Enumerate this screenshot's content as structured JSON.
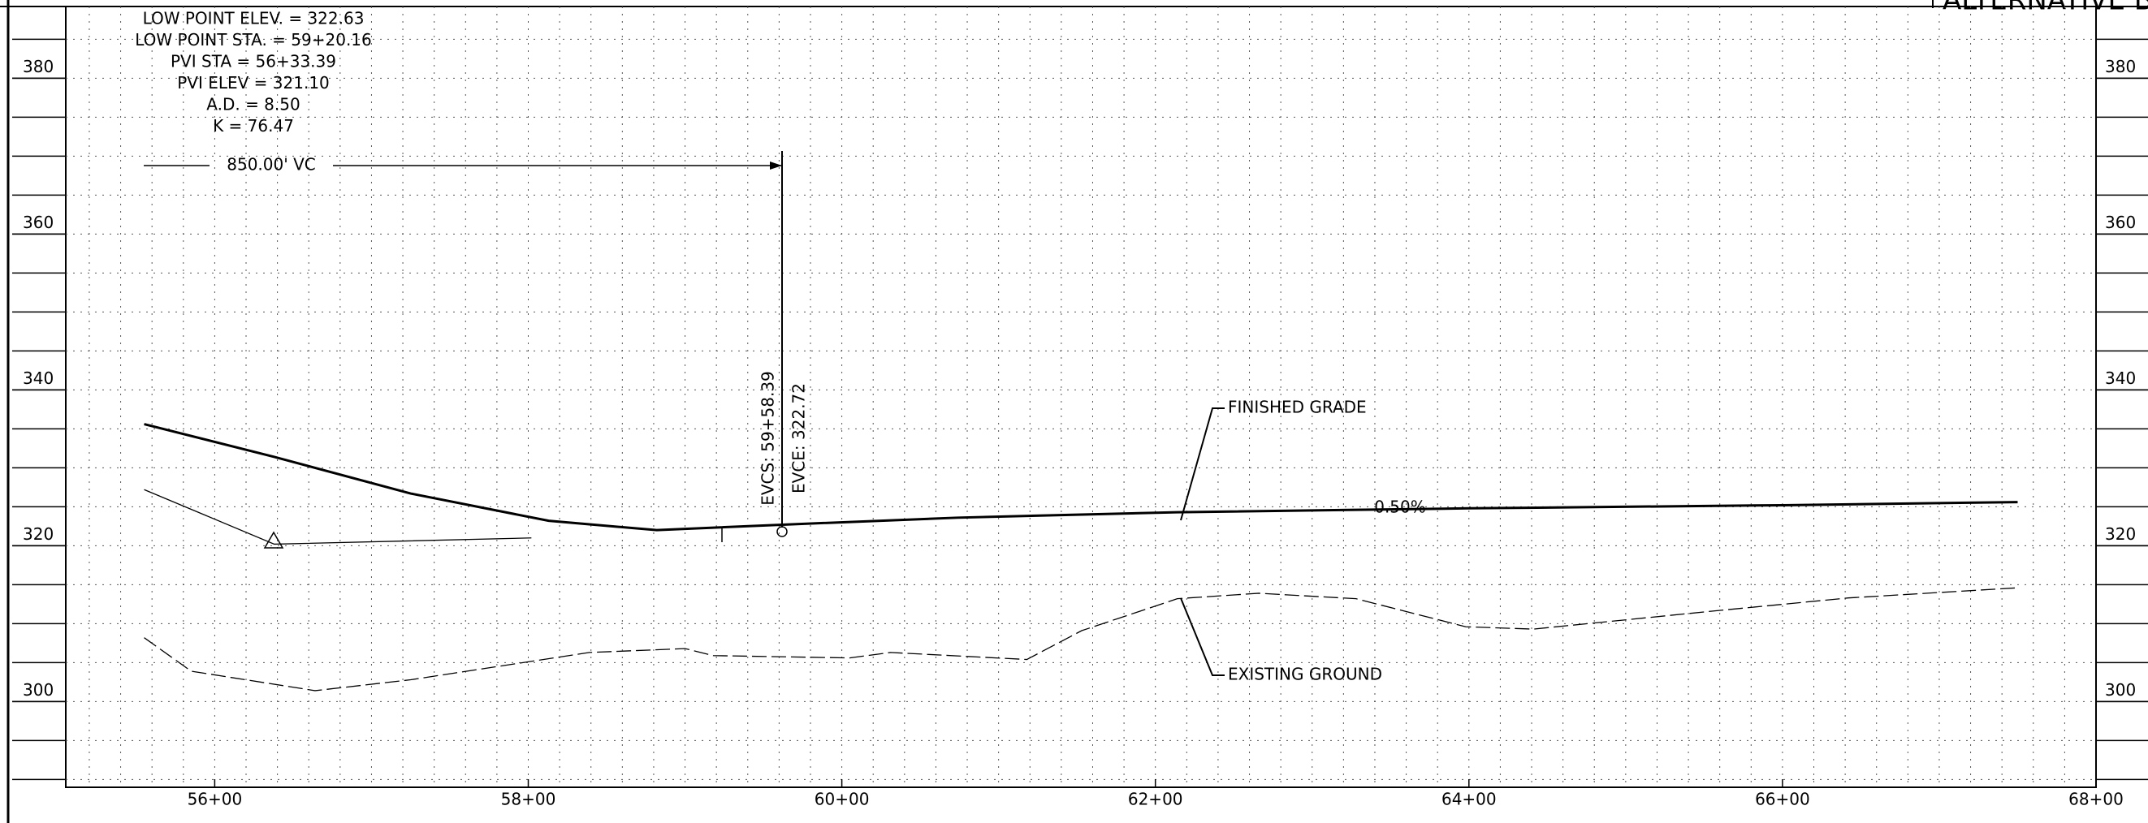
{
  "chart_data": {
    "type": "line",
    "title": "ALTERNATIVE B",
    "curve_data": [
      "LOW POINT ELEV. = 322.63",
      "LOW POINT STA. = 59+20.16",
      "PVI STA = 56+33.39",
      "PVI ELEV = 321.10",
      "A.D. = 8.50",
      "K = 76.47"
    ],
    "vc_label": "850.00' VC",
    "evcs_label": "EVCS: 59+58.39",
    "evce_label": "EVCE: 322.72",
    "grade_label": "FINISHED GRADE",
    "ground_label": "EXISTING GROUND",
    "slope_label": "0.50%",
    "xlim": [
      5505,
      6800
    ],
    "ylim": [
      289,
      389.2
    ],
    "xticks": [
      {
        "value": 5600,
        "label": "56+00"
      },
      {
        "value": 5800,
        "label": "58+00"
      },
      {
        "value": 6000,
        "label": "60+00"
      },
      {
        "value": 6200,
        "label": "62+00"
      },
      {
        "value": 6400,
        "label": "64+00"
      },
      {
        "value": 6600,
        "label": "66+00"
      },
      {
        "value": 6800,
        "label": "68+00"
      }
    ],
    "yticks": [
      300,
      320,
      340,
      360,
      380
    ],
    "grid": true,
    "series": [
      {
        "color": "#000000",
        "line_style": "solid",
        "width": 3,
        "x": [
          5555,
          5638,
          5725,
          5813,
          5882,
          5962,
          6074,
          6214,
          6400,
          6600,
          6750
        ],
        "values": [
          335.6,
          331.4,
          326.7,
          323.2,
          322.0,
          322.7,
          323.6,
          324.3,
          324.8,
          325.2,
          325.6
        ]
      },
      {
        "color": "#000000",
        "line_style": "solid",
        "width": 1.3,
        "x": [
          5555,
          5638,
          5802
        ],
        "values": [
          327.2,
          320.2,
          321.0
        ]
      },
      {
        "color": "#000000",
        "line_style": "dashed",
        "width": 1.3,
        "x": [
          5555,
          5585,
          5664,
          5725,
          5839,
          5900,
          5918,
          6005,
          6031,
          6118,
          6153,
          6214,
          6266,
          6328,
          6398,
          6441,
          6555,
          6642,
          6750
        ],
        "values": [
          308.2,
          303.9,
          301.4,
          302.8,
          306.3,
          306.8,
          305.9,
          305.6,
          306.3,
          305.4,
          309.1,
          313.2,
          313.9,
          313.2,
          309.6,
          309.3,
          311.6,
          313.3,
          314.6
        ]
      }
    ]
  }
}
